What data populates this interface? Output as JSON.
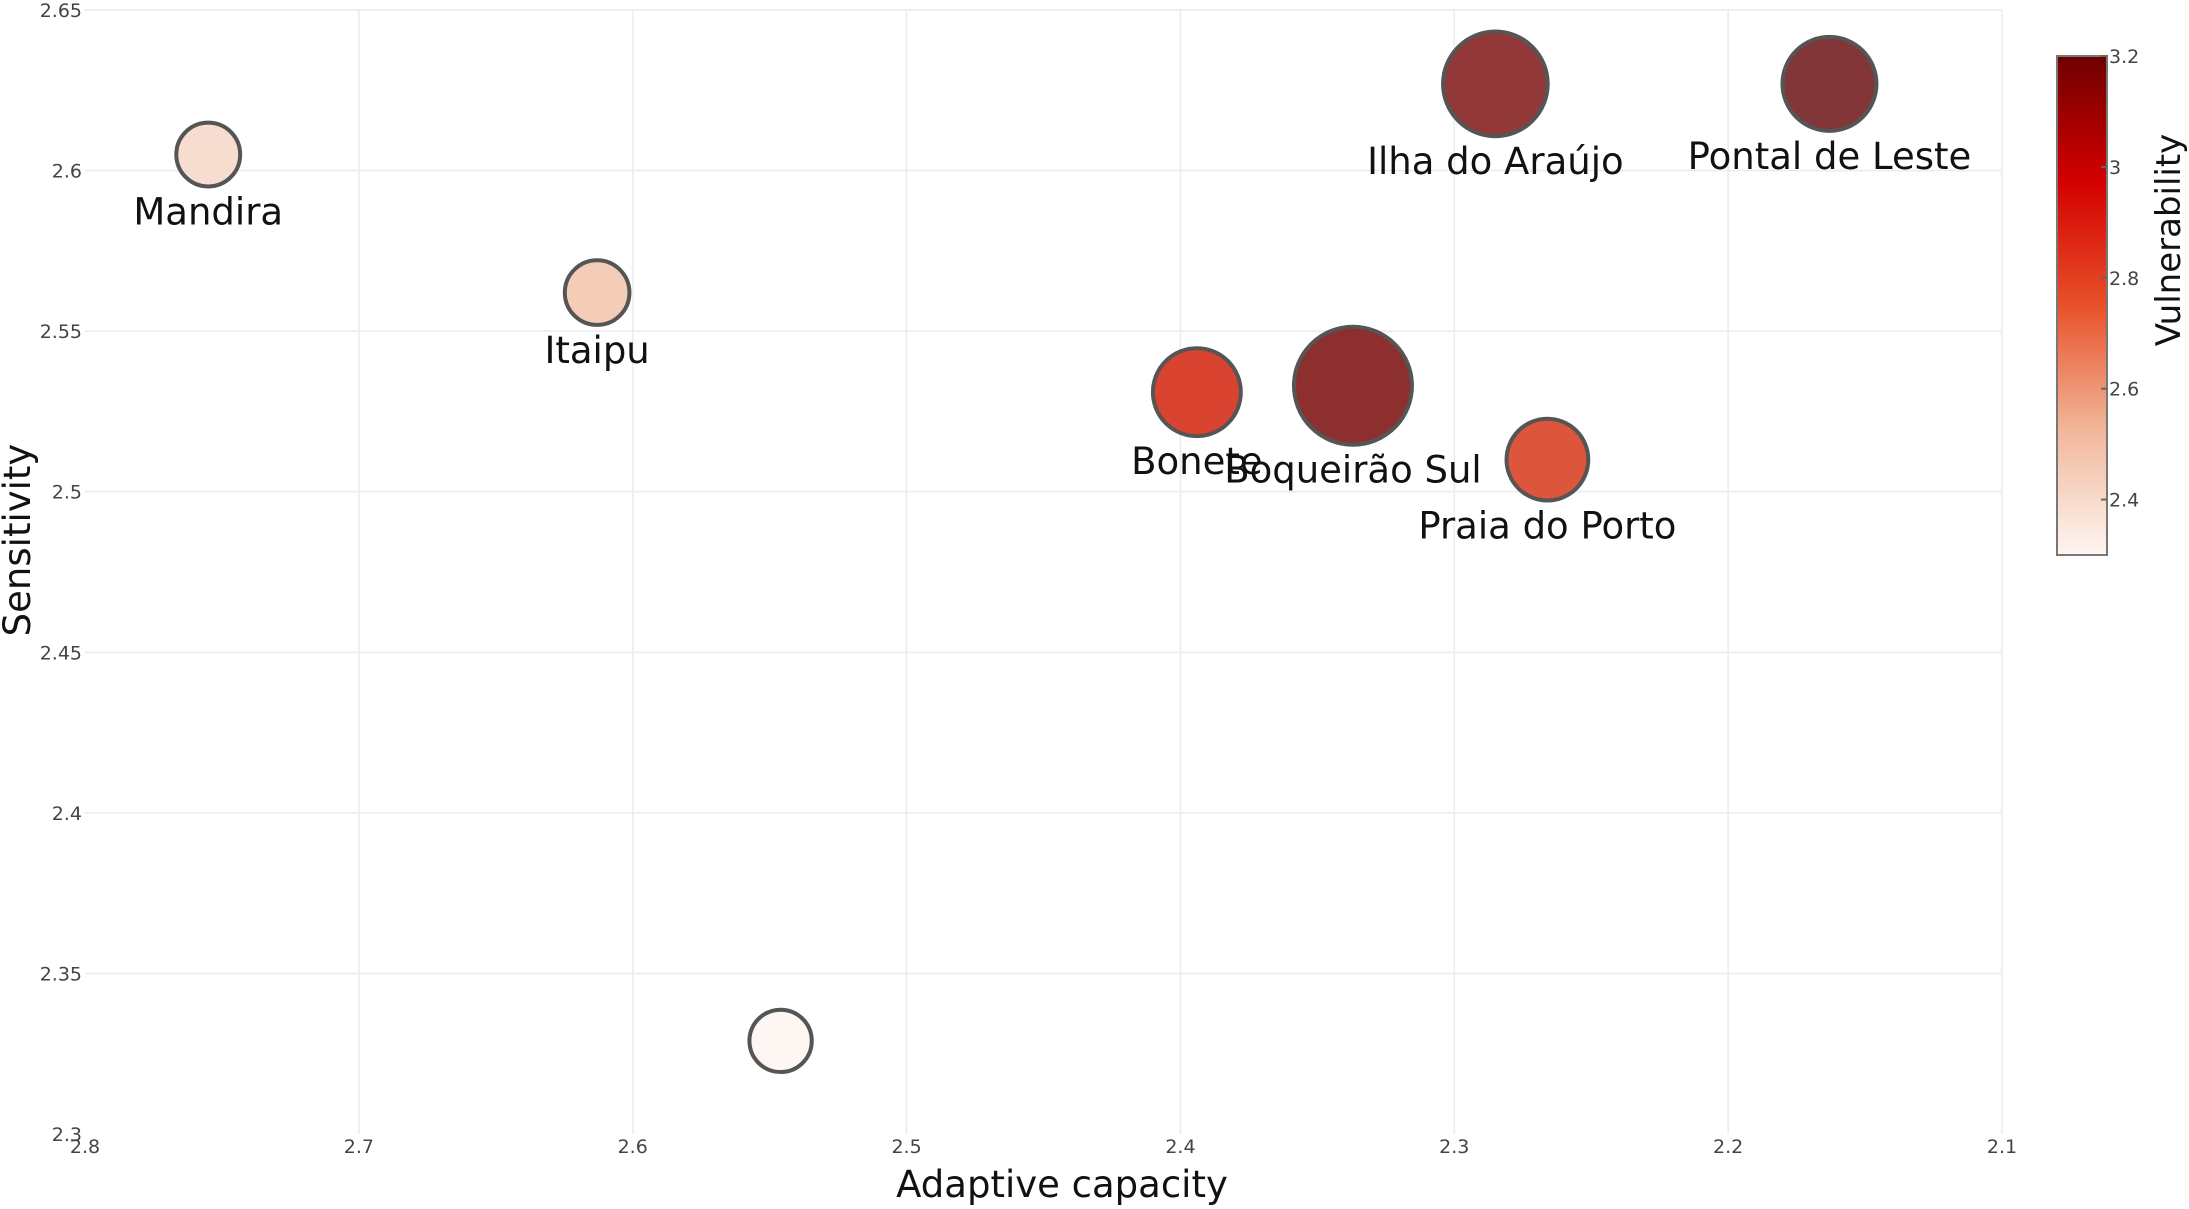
{
  "chart_data": {
    "type": "scatter",
    "title": "",
    "xlabel": "Adaptive capacity",
    "ylabel": "Sensitivity",
    "xlim": [
      2.8,
      2.1
    ],
    "x_reversed": true,
    "ylim": [
      2.3,
      2.65
    ],
    "x_ticks": [
      "2.8",
      "2.7",
      "2.6",
      "2.5",
      "2.4",
      "2.3",
      "2.2",
      "2.1"
    ],
    "y_ticks": [
      "2.3",
      "2.35",
      "2.4",
      "2.45",
      "2.5",
      "2.55",
      "2.6",
      "2.65"
    ],
    "grid": true,
    "size_encoding": "vulnerability",
    "colorbar": {
      "title": "Vulnerability",
      "range": [
        2.3,
        3.2
      ],
      "ticks": [
        "2.4",
        "2.6",
        "2.8",
        "3",
        "3.2"
      ],
      "colors": [
        "#fdf6f1",
        "#f1b79a",
        "#e8512a",
        "#d40000",
        "#6e0000"
      ],
      "placement": "right"
    },
    "points": [
      {
        "label": "Mandira",
        "x": 2.755,
        "y": 2.605,
        "value": 2.45,
        "color": "#f7ddd0",
        "label_pos": "below"
      },
      {
        "label": "Itaipu",
        "x": 2.613,
        "y": 2.562,
        "value": 2.48,
        "color": "#f3cdb7",
        "label_pos": "below"
      },
      {
        "label": "",
        "x": 2.546,
        "y": 2.329,
        "value": 2.36,
        "color": "#fdf6f2",
        "label_pos": "none"
      },
      {
        "label": "Bonete",
        "x": 2.394,
        "y": 2.531,
        "value": 2.9,
        "color": "#d9432f",
        "label_pos": "below"
      },
      {
        "label": "Boqueirão Sul",
        "x": 2.337,
        "y": 2.533,
        "value": 3.2,
        "color": "#8e2f2f",
        "label_pos": "below"
      },
      {
        "label": "Praia do Porto",
        "x": 2.266,
        "y": 2.51,
        "value": 2.82,
        "color": "#dd553a",
        "label_pos": "below"
      },
      {
        "label": "Ilha do Araújo",
        "x": 2.285,
        "y": 2.627,
        "value": 3.08,
        "color": "#933838",
        "label_pos": "below"
      },
      {
        "label": "Pontal de Leste",
        "x": 2.163,
        "y": 2.627,
        "value": 2.97,
        "color": "#823638",
        "label_pos": "below"
      }
    ]
  }
}
